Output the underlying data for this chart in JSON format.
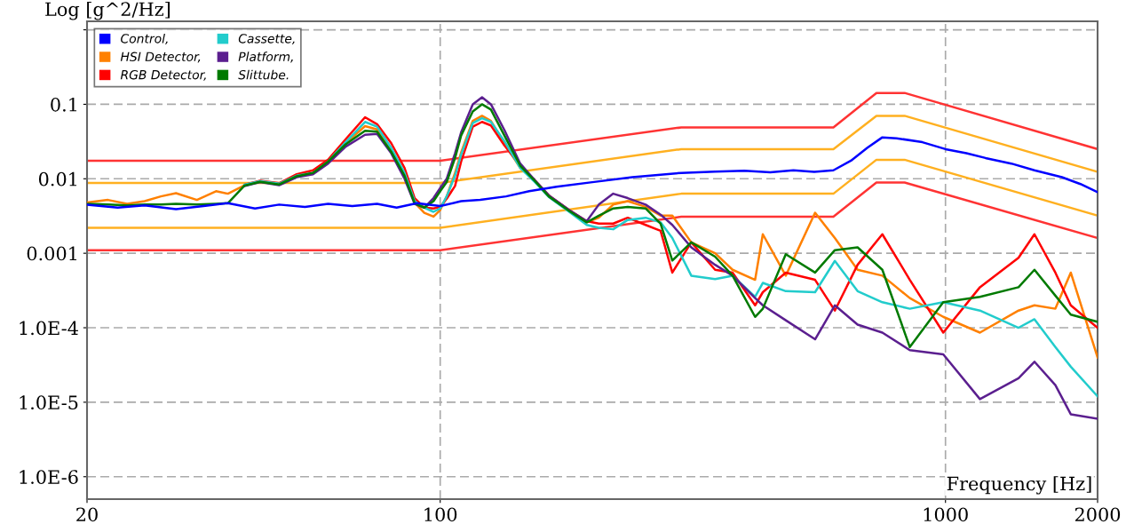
{
  "chart_data": {
    "type": "line",
    "xlabel": "Frequency [Hz]",
    "ylabel": "Log [g^2/Hz]",
    "log": "xy",
    "grid": true,
    "legend": "top left",
    "xlim": [
      20,
      2000
    ],
    "ylim": [
      5e-07,
      1.3
    ],
    "xticks": [
      20,
      100,
      1000,
      2000
    ],
    "yticks": [
      {
        "value": 1e-06,
        "label": "1.0E-6"
      },
      {
        "value": 1e-05,
        "label": "1.0E-5"
      },
      {
        "value": 0.0001,
        "label": "1.0E-4"
      },
      0.001,
      0.01,
      0.1,
      {
        "value": 1,
        "label": null
      }
    ],
    "x": [
      20,
      22,
      24,
      26,
      28,
      30,
      33,
      36,
      38,
      41,
      44,
      48,
      52,
      56,
      60,
      65,
      71,
      75,
      80,
      85,
      89,
      93,
      97,
      100,
      103,
      107,
      110,
      116,
      121,
      126,
      134,
      144,
      154,
      164,
      180,
      195,
      206,
      220,
      235,
      255,
      273,
      288,
      314,
      350,
      379,
      420,
      435,
      483,
      552,
      604,
      670,
      750,
      850,
      990,
      1170,
      1395,
      1500,
      1650,
      1770,
      2000
    ],
    "series": [
      {
        "name": "Control,",
        "color": "#0000ff",
        "x": [
          20,
          23,
          26,
          30,
          34,
          38,
          43,
          48,
          54,
          60,
          67,
          75,
          82,
          90,
          100,
          110,
          120,
          135,
          150,
          170,
          200,
          240,
          300,
          350,
          400,
          450,
          500,
          550,
          600,
          650,
          700,
          750,
          800,
          900,
          1000,
          1100,
          1200,
          1350,
          1500,
          1700,
          1850,
          2000
        ],
        "values": [
          0.0045,
          0.0041,
          0.0044,
          0.0039,
          0.0043,
          0.0047,
          0.004,
          0.0045,
          0.0042,
          0.0046,
          0.0043,
          0.0046,
          0.0041,
          0.0047,
          0.0043,
          0.005,
          0.0052,
          0.0058,
          0.0068,
          0.0078,
          0.009,
          0.0105,
          0.012,
          0.0125,
          0.0128,
          0.0122,
          0.013,
          0.0124,
          0.013,
          0.0175,
          0.026,
          0.036,
          0.035,
          0.031,
          0.025,
          0.022,
          0.019,
          0.016,
          0.013,
          0.0105,
          0.0085,
          0.0066
        ]
      },
      {
        "name": "HSI Detector,",
        "color": "#ff8000",
        "values": [
          0.0048,
          0.0052,
          0.0046,
          0.005,
          0.0058,
          0.0064,
          0.0052,
          0.0068,
          0.0063,
          0.0082,
          0.0092,
          0.0085,
          0.011,
          0.012,
          0.017,
          0.03,
          0.051,
          0.046,
          0.024,
          0.011,
          0.0048,
          0.0035,
          0.0031,
          0.0038,
          0.0058,
          0.012,
          0.0225,
          0.06,
          0.07,
          0.06,
          0.03,
          0.014,
          0.0093,
          0.0058,
          0.0037,
          0.0026,
          0.003,
          0.0045,
          0.005,
          0.0042,
          0.0032,
          0.0032,
          0.0014,
          0.001,
          0.0006,
          0.00044,
          0.0018,
          0.0005,
          0.0035,
          0.0016,
          0.0006,
          0.0005,
          0.00025,
          0.00014,
          8.6e-05,
          0.00017,
          0.0002,
          0.00018,
          0.00055,
          4e-05
        ]
      },
      {
        "name": "RGB Detector,",
        "color": "#ff0000",
        "values": [
          null,
          null,
          null,
          null,
          null,
          null,
          null,
          null,
          null,
          0.0083,
          0.0094,
          0.0087,
          0.0115,
          0.013,
          0.018,
          0.034,
          0.067,
          0.054,
          0.03,
          0.014,
          0.0055,
          0.0041,
          0.004,
          0.0042,
          0.0054,
          0.008,
          0.017,
          0.05,
          0.058,
          0.052,
          0.028,
          0.015,
          0.0095,
          0.006,
          0.0038,
          0.0027,
          0.0025,
          0.0025,
          0.003,
          0.0024,
          0.002,
          0.00055,
          0.0014,
          0.0006,
          0.00055,
          0.0002,
          0.0003,
          0.00055,
          0.00044,
          0.00017,
          0.0007,
          0.0018,
          0.00044,
          8.6e-05,
          0.00035,
          0.00087,
          0.0018,
          0.00055,
          0.0002,
          0.0001
        ]
      },
      {
        "name": "Cassette,",
        "color": "#22cccc",
        "values": [
          null,
          null,
          null,
          null,
          null,
          null,
          null,
          null,
          null,
          0.0083,
          0.0093,
          0.0086,
          0.011,
          0.012,
          0.017,
          0.031,
          0.058,
          0.05,
          0.026,
          0.012,
          0.005,
          0.0041,
          0.0036,
          0.004,
          0.0058,
          0.011,
          0.021,
          0.056,
          0.065,
          0.058,
          0.032,
          0.014,
          0.009,
          0.0057,
          0.0036,
          0.0024,
          0.0022,
          0.0021,
          0.0028,
          0.003,
          0.0026,
          0.0016,
          0.0005,
          0.00045,
          0.0005,
          0.00026,
          0.0004,
          0.00031,
          0.0003,
          0.00079,
          0.00031,
          0.00022,
          0.00018,
          0.00022,
          0.00017,
          0.0001,
          0.00013,
          5.5e-05,
          3e-05,
          1.2e-05
        ]
      },
      {
        "name": "Platform,",
        "color": "#5b1f8f",
        "values": [
          null,
          null,
          null,
          null,
          null,
          null,
          null,
          null,
          null,
          0.008,
          0.009,
          0.0082,
          0.0105,
          0.0115,
          0.016,
          0.027,
          0.039,
          0.04,
          0.022,
          0.01,
          0.0046,
          0.0041,
          0.0055,
          0.0075,
          0.01,
          0.022,
          0.042,
          0.1,
          0.124,
          0.1,
          0.045,
          0.016,
          0.0095,
          0.006,
          0.0038,
          0.0027,
          0.0045,
          0.0063,
          0.0055,
          0.0045,
          0.0033,
          0.0024,
          0.0012,
          0.0007,
          0.0005,
          0.00025,
          0.0002,
          0.000126,
          7e-05,
          0.0002,
          0.00011,
          8.6e-05,
          5e-05,
          4.4e-05,
          1.1e-05,
          2.1e-05,
          3.5e-05,
          1.7e-05,
          6.9e-06,
          6e-06
        ]
      },
      {
        "name": "Slittube.",
        "color": "#007a00",
        "values": [
          0.0046,
          0.0045,
          0.0044,
          0.0045,
          0.0045,
          0.0046,
          0.0045,
          0.0046,
          0.0047,
          0.0081,
          0.0091,
          0.0084,
          0.0108,
          0.012,
          0.017,
          0.029,
          0.044,
          0.043,
          0.023,
          0.011,
          0.0047,
          0.0041,
          0.005,
          0.0068,
          0.009,
          0.019,
          0.038,
          0.08,
          0.1,
          0.085,
          0.038,
          0.015,
          0.0093,
          0.0058,
          0.0037,
          0.0026,
          0.0032,
          0.004,
          0.0042,
          0.004,
          0.0025,
          0.0008,
          0.0014,
          0.0009,
          0.0005,
          0.00014,
          0.00018,
          0.00097,
          0.00055,
          0.0011,
          0.0012,
          0.0006,
          5.5e-05,
          0.00022,
          0.00026,
          0.00035,
          0.0006,
          0.00027,
          0.00015,
          0.00012
        ]
      },
      {
        "color": "#ff3333",
        "x": [
          20,
          100,
          300,
          600,
          730,
          830,
          2000
        ],
        "values": [
          0.0175,
          0.0175,
          0.049,
          0.049,
          0.142,
          0.142,
          0.025
        ]
      },
      {
        "color": "#ffb020",
        "x": [
          20,
          100,
          300,
          600,
          730,
          830,
          2000
        ],
        "values": [
          0.0088,
          0.0088,
          0.025,
          0.025,
          0.07,
          0.07,
          0.0124
        ]
      },
      {
        "color": "#ffb020",
        "x": [
          20,
          100,
          300,
          600,
          730,
          830,
          2000
        ],
        "values": [
          0.0022,
          0.0022,
          0.0063,
          0.0063,
          0.018,
          0.018,
          0.0032
        ]
      },
      {
        "color": "#ff3333",
        "x": [
          20,
          100,
          300,
          600,
          730,
          830,
          2000
        ],
        "values": [
          0.0011,
          0.0011,
          0.0031,
          0.0031,
          0.0089,
          0.0089,
          0.0016
        ]
      }
    ]
  }
}
